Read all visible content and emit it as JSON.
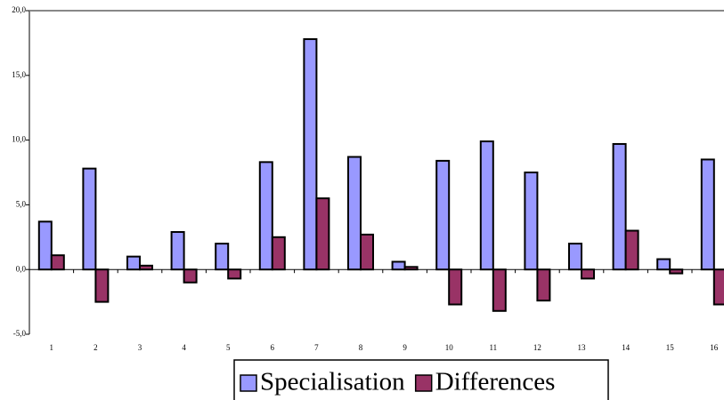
{
  "chart_data": {
    "type": "bar",
    "categories": [
      "1",
      "2",
      "3",
      "4",
      "5",
      "6",
      "7",
      "8",
      "9",
      "10",
      "11",
      "12",
      "13",
      "14",
      "15",
      "16"
    ],
    "series": [
      {
        "name": "Specialisation",
        "color": "#9999ff",
        "values": [
          3.7,
          7.8,
          1.0,
          2.9,
          2.0,
          8.3,
          17.8,
          8.7,
          0.6,
          8.4,
          9.9,
          7.5,
          2.0,
          9.7,
          0.8,
          8.5
        ]
      },
      {
        "name": "Differences",
        "color": "#993366",
        "values": [
          1.1,
          -2.5,
          0.3,
          -1.0,
          -0.7,
          2.5,
          5.5,
          2.7,
          0.2,
          -2.7,
          -3.2,
          -2.4,
          -0.7,
          3.0,
          -0.3,
          -2.7
        ]
      }
    ],
    "ylim": [
      -5,
      20
    ],
    "yticks": [
      {
        "value": -5,
        "label": "-5,0"
      },
      {
        "value": 0,
        "label": "0,0"
      },
      {
        "value": 5,
        "label": "5,0"
      },
      {
        "value": 10,
        "label": "10,0"
      },
      {
        "value": 15,
        "label": "15,0"
      },
      {
        "value": 20,
        "label": "20,0"
      }
    ],
    "legend": "bottom"
  }
}
